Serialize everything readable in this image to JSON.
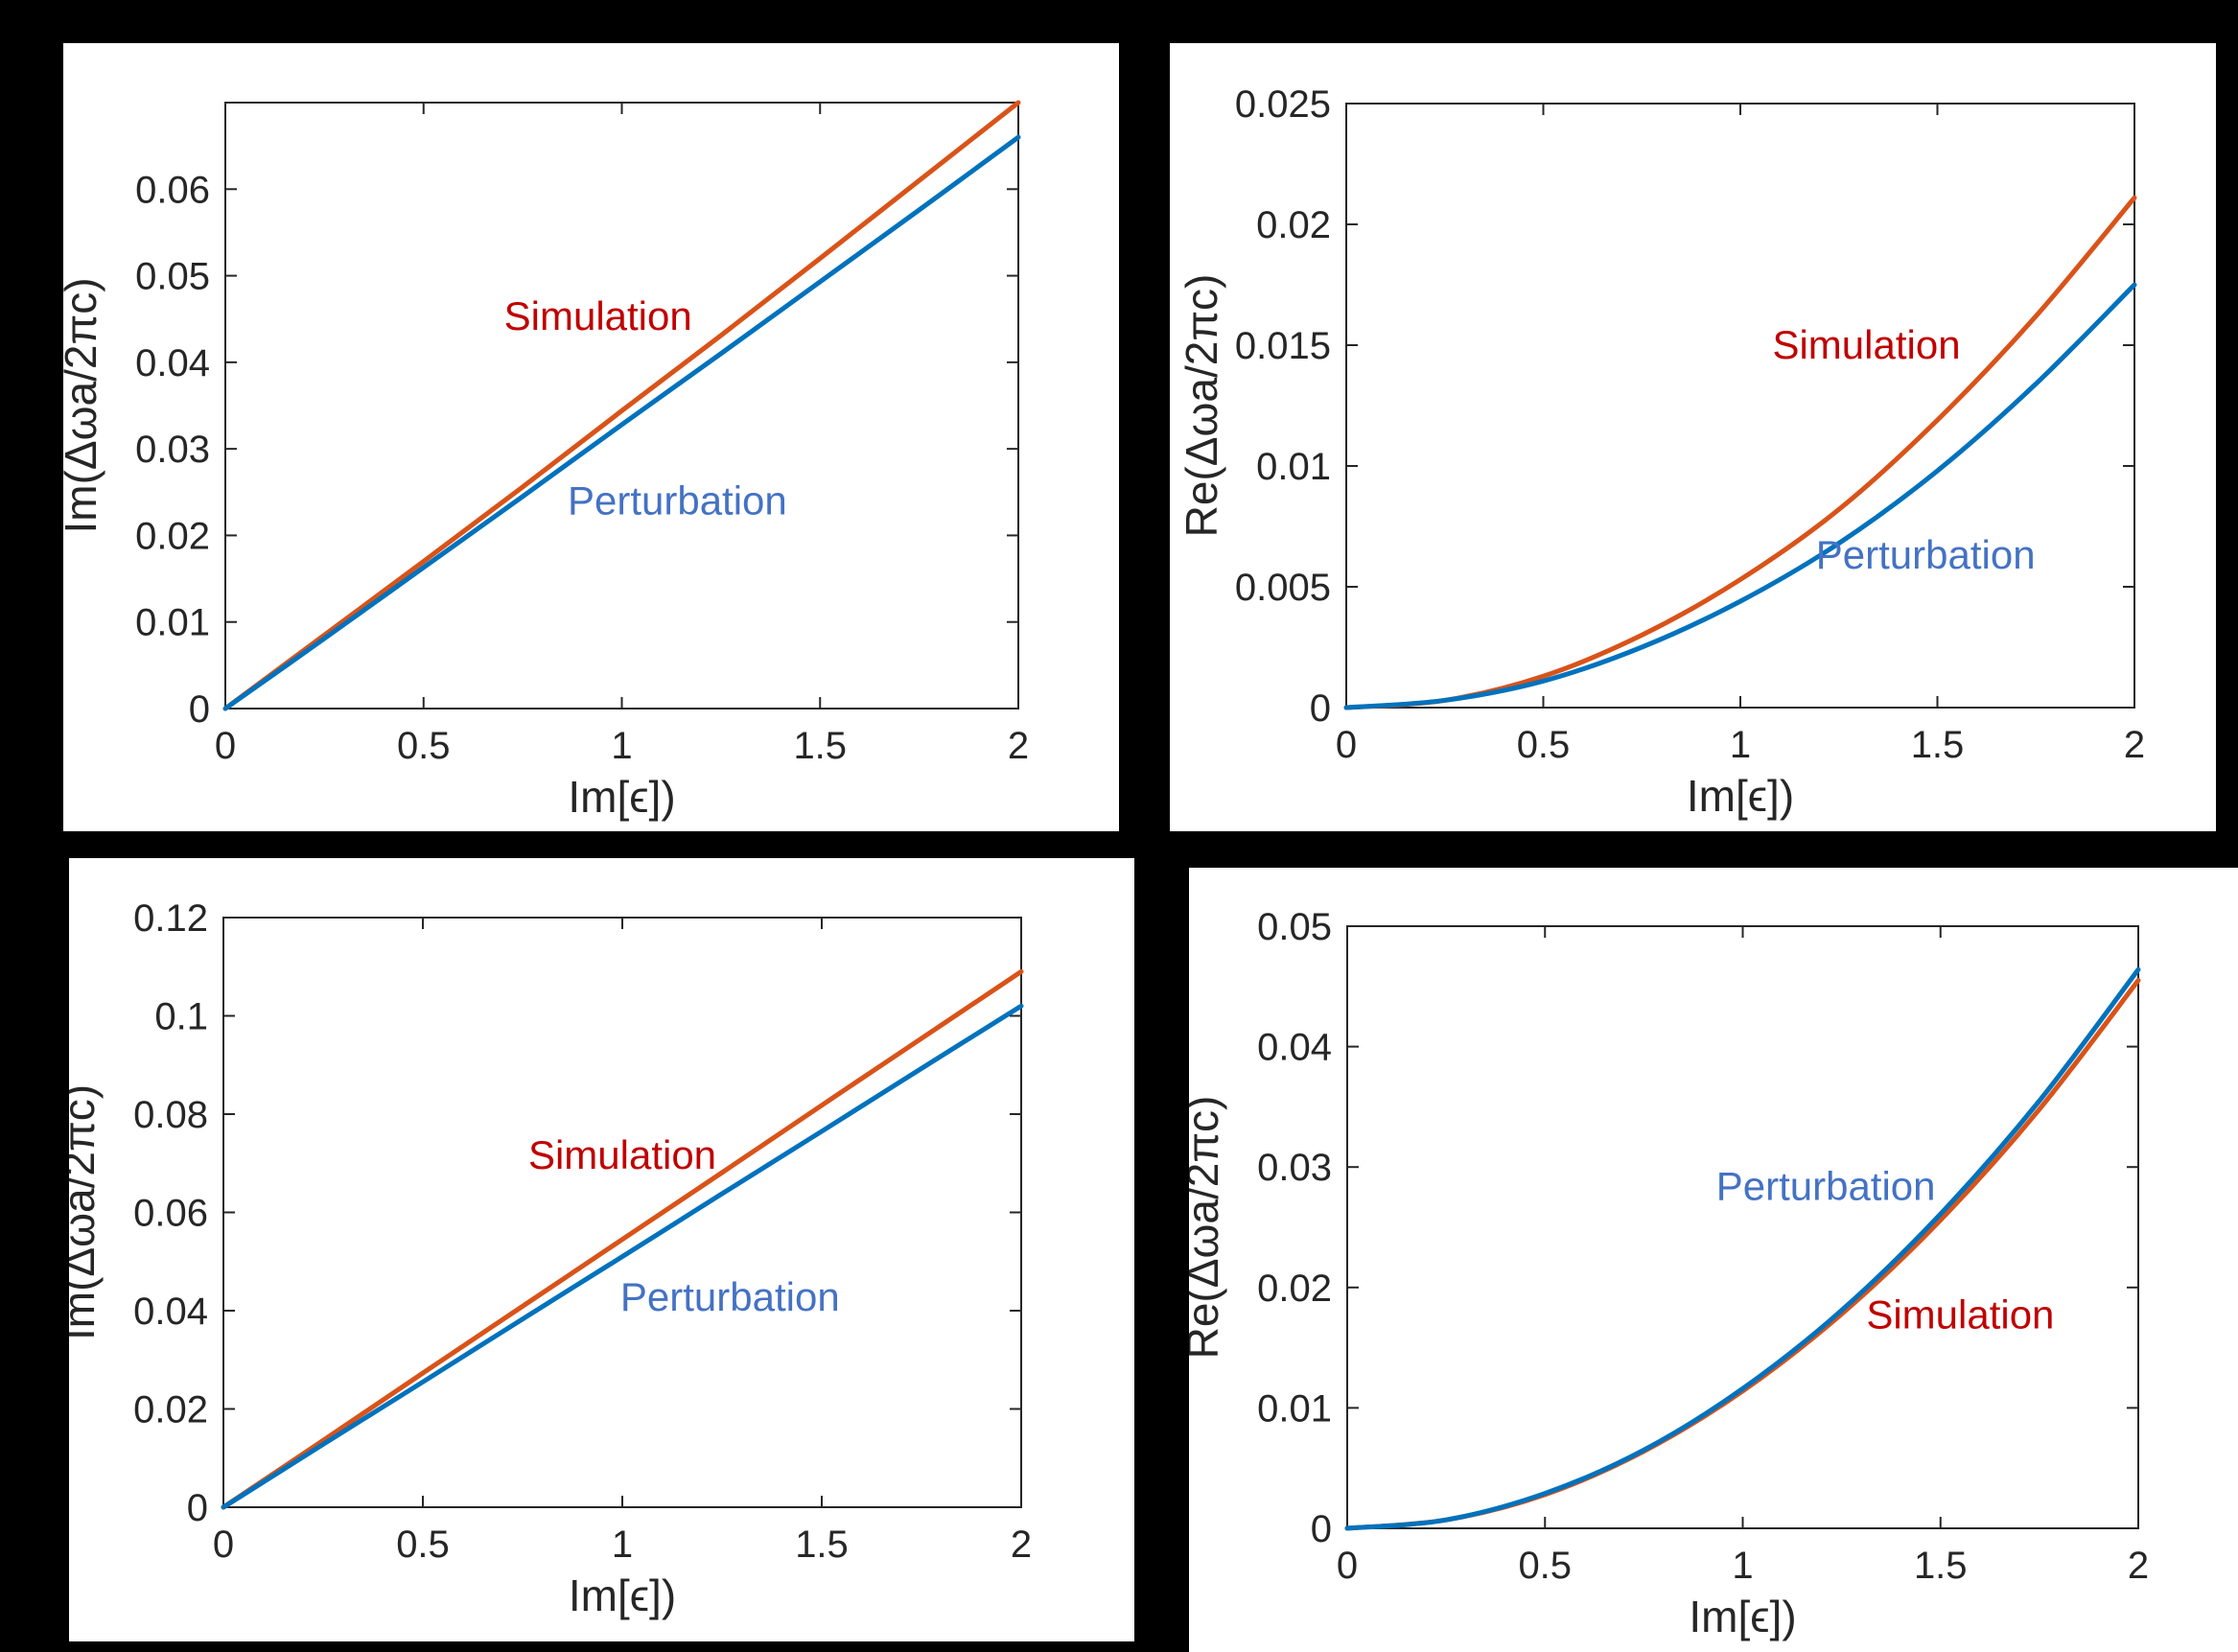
{
  "figure": {
    "background": "#000000",
    "panel_background": "#ffffff"
  },
  "colors": {
    "simulation_line": "#d95319",
    "perturbation_line": "#0072bd",
    "simulation_text": "#c00000",
    "perturbation_text": "#4472c4",
    "axis": "#262626"
  },
  "chart_data": [
    {
      "id": "top-left",
      "type": "line",
      "title": "",
      "xlabel": "Im[ϵ])",
      "ylabel": "Im(Δωa/2πc)",
      "xlim": [
        0,
        2
      ],
      "ylim": [
        0,
        0.07
      ],
      "grid": false,
      "legend": "inline-text-annotations",
      "xticks": [
        0,
        0.5,
        1,
        1.5,
        2
      ],
      "xtick_labels": [
        "0",
        "0.5",
        "1",
        "1.5",
        "2"
      ],
      "yticks": [
        0,
        0.01,
        0.02,
        0.03,
        0.04,
        0.05,
        0.06
      ],
      "ytick_labels": [
        "0",
        "0.01",
        "0.02",
        "0.03",
        "0.04",
        "0.05",
        "0.06"
      ],
      "x": [
        0,
        0.25,
        0.5,
        0.75,
        1,
        1.25,
        1.5,
        1.75,
        2
      ],
      "series": [
        {
          "name": "Simulation",
          "color": "simulation_line",
          "values": [
            0,
            0.0085,
            0.017,
            0.0256,
            0.0344,
            0.0431,
            0.052,
            0.061,
            0.07
          ]
        },
        {
          "name": "Perturbation",
          "color": "perturbation_line",
          "values": [
            0,
            0.0081,
            0.0163,
            0.0245,
            0.0328,
            0.041,
            0.0493,
            0.0576,
            0.066
          ]
        }
      ],
      "annotations": [
        {
          "text": "Simulation",
          "x": 0.94,
          "y": 0.0453,
          "color": "simulation_text"
        },
        {
          "text": "Perturbation",
          "x": 1.14,
          "y": 0.024,
          "color": "perturbation_text"
        }
      ]
    },
    {
      "id": "top-right",
      "type": "line",
      "title": "",
      "xlabel": "Im[ϵ])",
      "ylabel": "Re(Δωa/2πc)",
      "xlim": [
        0,
        2
      ],
      "ylim": [
        0,
        0.025
      ],
      "grid": false,
      "legend": "inline-text-annotations",
      "xticks": [
        0,
        0.5,
        1,
        1.5,
        2
      ],
      "xtick_labels": [
        "0",
        "0.5",
        "1",
        "1.5",
        "2"
      ],
      "yticks": [
        0,
        0.005,
        0.01,
        0.015,
        0.02,
        0.025
      ],
      "ytick_labels": [
        "0",
        "0.005",
        "0.01",
        "0.015",
        "0.02",
        "0.025"
      ],
      "x": [
        0,
        0.25,
        0.5,
        0.75,
        1,
        1.25,
        1.5,
        1.75,
        2
      ],
      "series": [
        {
          "name": "Simulation",
          "color": "simulation_line",
          "values": [
            0,
            0.0003,
            0.0013,
            0.003,
            0.0053,
            0.0082,
            0.0119,
            0.0162,
            0.0211
          ]
        },
        {
          "name": "Perturbation",
          "color": "perturbation_line",
          "values": [
            0,
            0.0003,
            0.0011,
            0.0025,
            0.0044,
            0.0068,
            0.0098,
            0.0134,
            0.0175
          ]
        }
      ],
      "annotations": [
        {
          "text": "Simulation",
          "x": 1.32,
          "y": 0.015,
          "color": "simulation_text"
        },
        {
          "text": "Perturbation",
          "x": 1.47,
          "y": 0.0063,
          "color": "perturbation_text"
        }
      ]
    },
    {
      "id": "bottom-left",
      "type": "line",
      "title": "",
      "xlabel": "Im[ϵ])",
      "ylabel": "Im(Δωa/2πc)",
      "xlim": [
        0,
        2
      ],
      "ylim": [
        0,
        0.12
      ],
      "grid": false,
      "legend": "inline-text-annotations",
      "xticks": [
        0,
        0.5,
        1,
        1.5,
        2
      ],
      "xtick_labels": [
        "0",
        "0.5",
        "1",
        "1.5",
        "2"
      ],
      "yticks": [
        0,
        0.02,
        0.04,
        0.06,
        0.08,
        0.1,
        0.12
      ],
      "ytick_labels": [
        "0",
        "0.02",
        "0.04",
        "0.06",
        "0.08",
        "0.1",
        "0.12"
      ],
      "x": [
        0,
        0.25,
        0.5,
        0.75,
        1,
        1.25,
        1.5,
        1.75,
        2
      ],
      "series": [
        {
          "name": "Simulation",
          "color": "simulation_line",
          "values": [
            0,
            0.0136,
            0.0273,
            0.0409,
            0.0545,
            0.0681,
            0.0818,
            0.0954,
            0.109
          ]
        },
        {
          "name": "Perturbation",
          "color": "perturbation_line",
          "values": [
            0,
            0.0128,
            0.0255,
            0.0383,
            0.051,
            0.0638,
            0.0765,
            0.0893,
            0.102
          ]
        }
      ],
      "annotations": [
        {
          "text": "Simulation",
          "x": 1.0,
          "y": 0.0716,
          "color": "simulation_text"
        },
        {
          "text": "Perturbation",
          "x": 1.27,
          "y": 0.0427,
          "color": "perturbation_text"
        }
      ]
    },
    {
      "id": "bottom-right",
      "type": "line",
      "title": "",
      "xlabel": "Im[ϵ])",
      "ylabel": "Re(Δωa/2πc)",
      "xlim": [
        0,
        2
      ],
      "ylim": [
        0,
        0.05
      ],
      "grid": false,
      "legend": "inline-text-annotations",
      "xticks": [
        0,
        0.5,
        1,
        1.5,
        2
      ],
      "xtick_labels": [
        "0",
        "0.5",
        "1",
        "1.5",
        "2"
      ],
      "yticks": [
        0,
        0.01,
        0.02,
        0.03,
        0.04,
        0.05
      ],
      "ytick_labels": [
        "0",
        "0.01",
        "0.02",
        "0.03",
        "0.04",
        "0.05"
      ],
      "x": [
        0,
        0.25,
        0.5,
        0.75,
        1,
        1.25,
        1.5,
        1.75,
        2
      ],
      "series": [
        {
          "name": "Simulation",
          "color": "simulation_line",
          "values": [
            0,
            0.0007,
            0.0028,
            0.0064,
            0.0114,
            0.0178,
            0.0256,
            0.0348,
            0.0455
          ]
        },
        {
          "name": "Perturbation",
          "color": "perturbation_line",
          "values": [
            0,
            0.0007,
            0.0029,
            0.0065,
            0.0116,
            0.0181,
            0.0261,
            0.0355,
            0.0464
          ]
        }
      ],
      "annotations": [
        {
          "text": "Perturbation",
          "x": 1.21,
          "y": 0.0284,
          "color": "perturbation_text"
        },
        {
          "text": "Simulation",
          "x": 1.55,
          "y": 0.0177,
          "color": "simulation_text"
        }
      ]
    }
  ]
}
